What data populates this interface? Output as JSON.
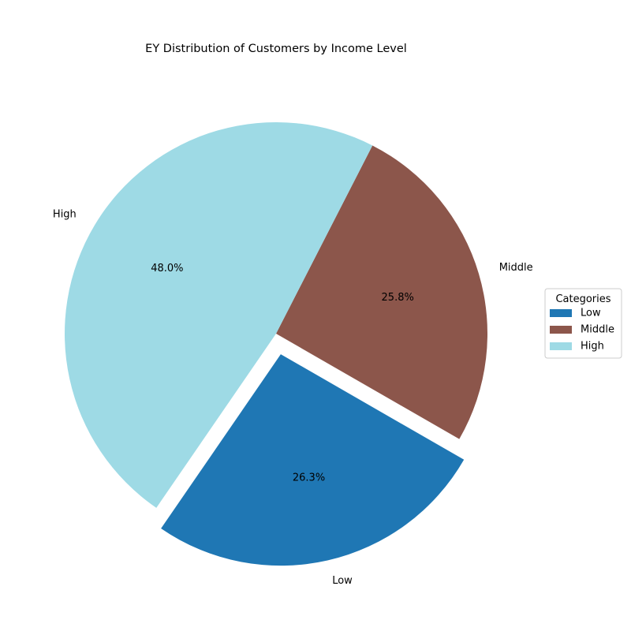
{
  "chart_data": {
    "type": "pie",
    "title": "EY Distribution of Customers by Income Level",
    "categories": [
      "Low",
      "Middle",
      "High"
    ],
    "values": [
      26.3,
      25.8,
      48.0
    ],
    "percent_labels": [
      "26.3%",
      "25.8%",
      "48.0%"
    ],
    "colors": [
      "#1f77b4",
      "#8c564b",
      "#9edae5"
    ],
    "explode": [
      0.1,
      0,
      0
    ],
    "start_angle_deg": -124.5,
    "direction": "counterclockwise",
    "legend": {
      "title": "Categories",
      "placement": "center-right",
      "entries": [
        "Low",
        "Middle",
        "High"
      ]
    }
  }
}
